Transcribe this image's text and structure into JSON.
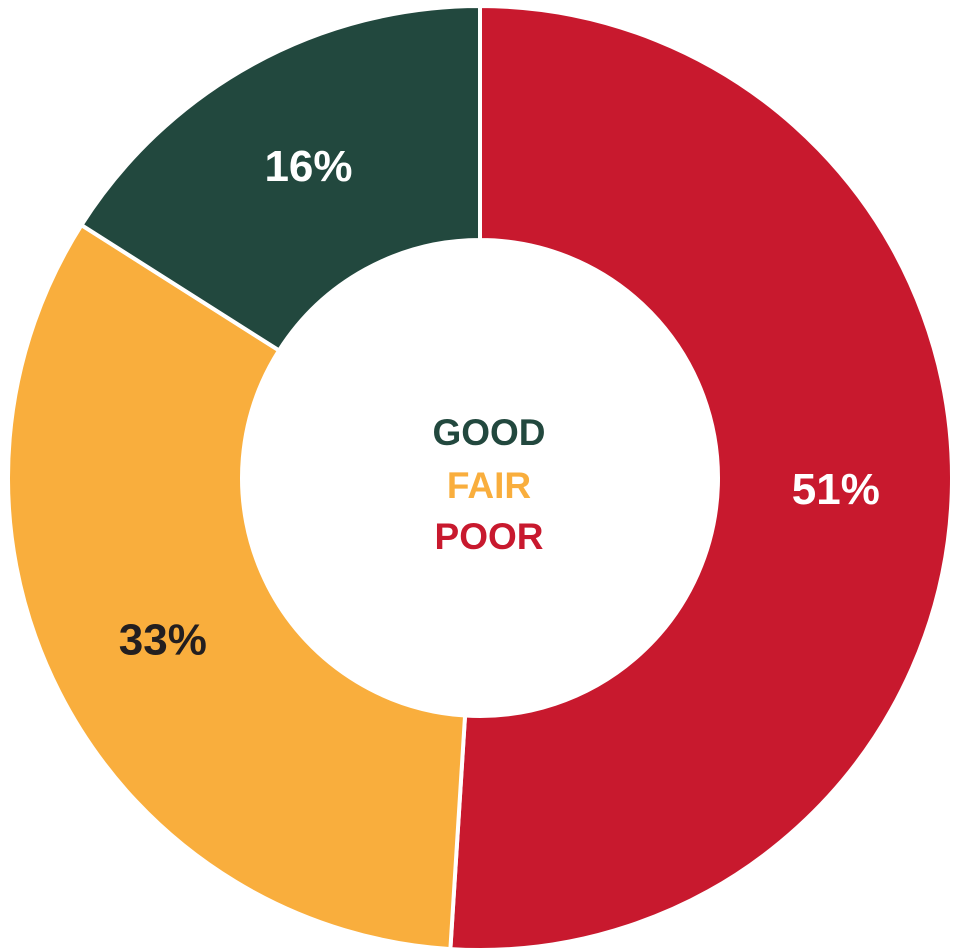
{
  "chart_data": {
    "type": "pie",
    "variant": "donut",
    "categories": [
      "POOR",
      "FAIR",
      "GOOD"
    ],
    "values": [
      51,
      33,
      16
    ],
    "value_labels": [
      "51%",
      "33%",
      "16%"
    ],
    "colors": [
      "#c8192e",
      "#f9ae3d",
      "#22483e"
    ],
    "label_colors": [
      "#ffffff",
      "#231f20",
      "#ffffff"
    ],
    "legend": {
      "placement": "center",
      "items": [
        {
          "label": "GOOD",
          "color": "#22483e"
        },
        {
          "label": "FAIR",
          "color": "#f9ae3d"
        },
        {
          "label": "POOR",
          "color": "#c8192e"
        }
      ]
    }
  }
}
